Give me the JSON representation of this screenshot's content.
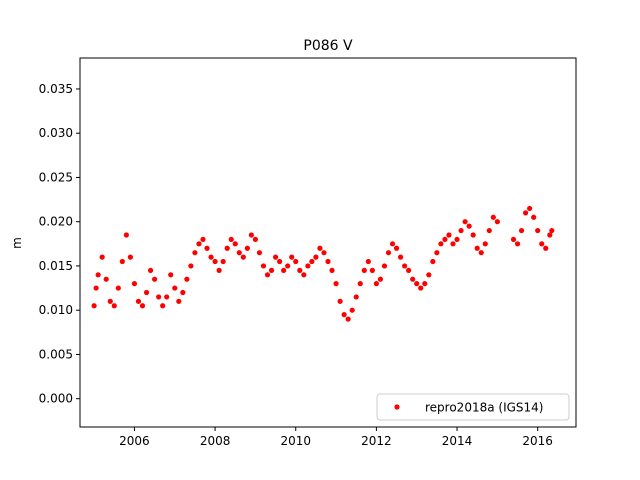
{
  "chart_data": {
    "type": "scatter",
    "title": "P086 V",
    "xlabel": "",
    "ylabel": "m",
    "xlim": [
      2004.65,
      2016.95
    ],
    "ylim": [
      -0.0032,
      0.0385
    ],
    "xticks": [
      2006,
      2008,
      2010,
      2012,
      2014,
      2016
    ],
    "xtick_labels": [
      "2006",
      "2008",
      "2010",
      "2012",
      "2014",
      "2016"
    ],
    "yticks": [
      0.0,
      0.005,
      0.01,
      0.015,
      0.02,
      0.025,
      0.03,
      0.035
    ],
    "ytick_labels": [
      "0.000",
      "0.005",
      "0.010",
      "0.015",
      "0.020",
      "0.025",
      "0.030",
      "0.035"
    ],
    "grid": false,
    "legend_position": "lower-right",
    "series": [
      {
        "name": "repro2018a (IGS14)",
        "color": "#ff0000",
        "marker": "dot",
        "x": [
          2005.0,
          2005.05,
          2005.1,
          2005.2,
          2005.3,
          2005.4,
          2005.5,
          2005.6,
          2005.7,
          2005.8,
          2005.9,
          2006.0,
          2006.1,
          2006.2,
          2006.3,
          2006.4,
          2006.5,
          2006.6,
          2006.7,
          2006.8,
          2006.9,
          2007.0,
          2007.1,
          2007.2,
          2007.3,
          2007.4,
          2007.5,
          2007.6,
          2007.7,
          2007.8,
          2007.9,
          2008.0,
          2008.1,
          2008.2,
          2008.3,
          2008.4,
          2008.5,
          2008.6,
          2008.7,
          2008.8,
          2008.9,
          2009.0,
          2009.1,
          2009.2,
          2009.3,
          2009.4,
          2009.5,
          2009.6,
          2009.7,
          2009.8,
          2009.9,
          2010.0,
          2010.1,
          2010.2,
          2010.3,
          2010.4,
          2010.5,
          2010.6,
          2010.7,
          2010.8,
          2010.9,
          2011.0,
          2011.1,
          2011.2,
          2011.3,
          2011.4,
          2011.5,
          2011.6,
          2011.7,
          2011.8,
          2011.9,
          2012.0,
          2012.1,
          2012.2,
          2012.3,
          2012.4,
          2012.5,
          2012.6,
          2012.7,
          2012.8,
          2012.9,
          2013.0,
          2013.1,
          2013.2,
          2013.3,
          2013.4,
          2013.5,
          2013.6,
          2013.7,
          2013.8,
          2013.9,
          2014.0,
          2014.1,
          2014.2,
          2014.3,
          2014.4,
          2014.5,
          2014.6,
          2014.7,
          2014.8,
          2014.9,
          2015.0,
          2015.4,
          2015.5,
          2015.6,
          2015.7,
          2015.8,
          2015.9,
          2016.0,
          2016.1,
          2016.2,
          2016.3,
          2016.35
        ],
        "y": [
          0.0105,
          0.0125,
          0.014,
          0.016,
          0.0135,
          0.011,
          0.0105,
          0.0125,
          0.0155,
          0.0185,
          0.016,
          0.013,
          0.011,
          0.0105,
          0.012,
          0.0145,
          0.0135,
          0.0115,
          0.0105,
          0.0115,
          0.014,
          0.0125,
          0.011,
          0.012,
          0.0135,
          0.015,
          0.0165,
          0.0175,
          0.018,
          0.017,
          0.016,
          0.0155,
          0.0145,
          0.0155,
          0.017,
          0.018,
          0.0175,
          0.0165,
          0.016,
          0.017,
          0.0185,
          0.018,
          0.0165,
          0.015,
          0.014,
          0.0145,
          0.016,
          0.0155,
          0.0145,
          0.015,
          0.016,
          0.0155,
          0.0145,
          0.014,
          0.015,
          0.0155,
          0.016,
          0.017,
          0.0165,
          0.0155,
          0.0145,
          0.013,
          0.011,
          0.0095,
          0.009,
          0.01,
          0.0115,
          0.013,
          0.0145,
          0.0155,
          0.0145,
          0.013,
          0.0135,
          0.015,
          0.0165,
          0.0175,
          0.017,
          0.016,
          0.015,
          0.0145,
          0.0135,
          0.013,
          0.0125,
          0.013,
          0.014,
          0.0155,
          0.0165,
          0.0175,
          0.018,
          0.0185,
          0.0175,
          0.018,
          0.019,
          0.02,
          0.0195,
          0.0185,
          0.017,
          0.0165,
          0.0175,
          0.019,
          0.0205,
          0.02,
          0.018,
          0.0175,
          0.019,
          0.021,
          0.0215,
          0.0205,
          0.019,
          0.0175,
          0.017,
          0.0185,
          0.019
        ]
      }
    ]
  }
}
